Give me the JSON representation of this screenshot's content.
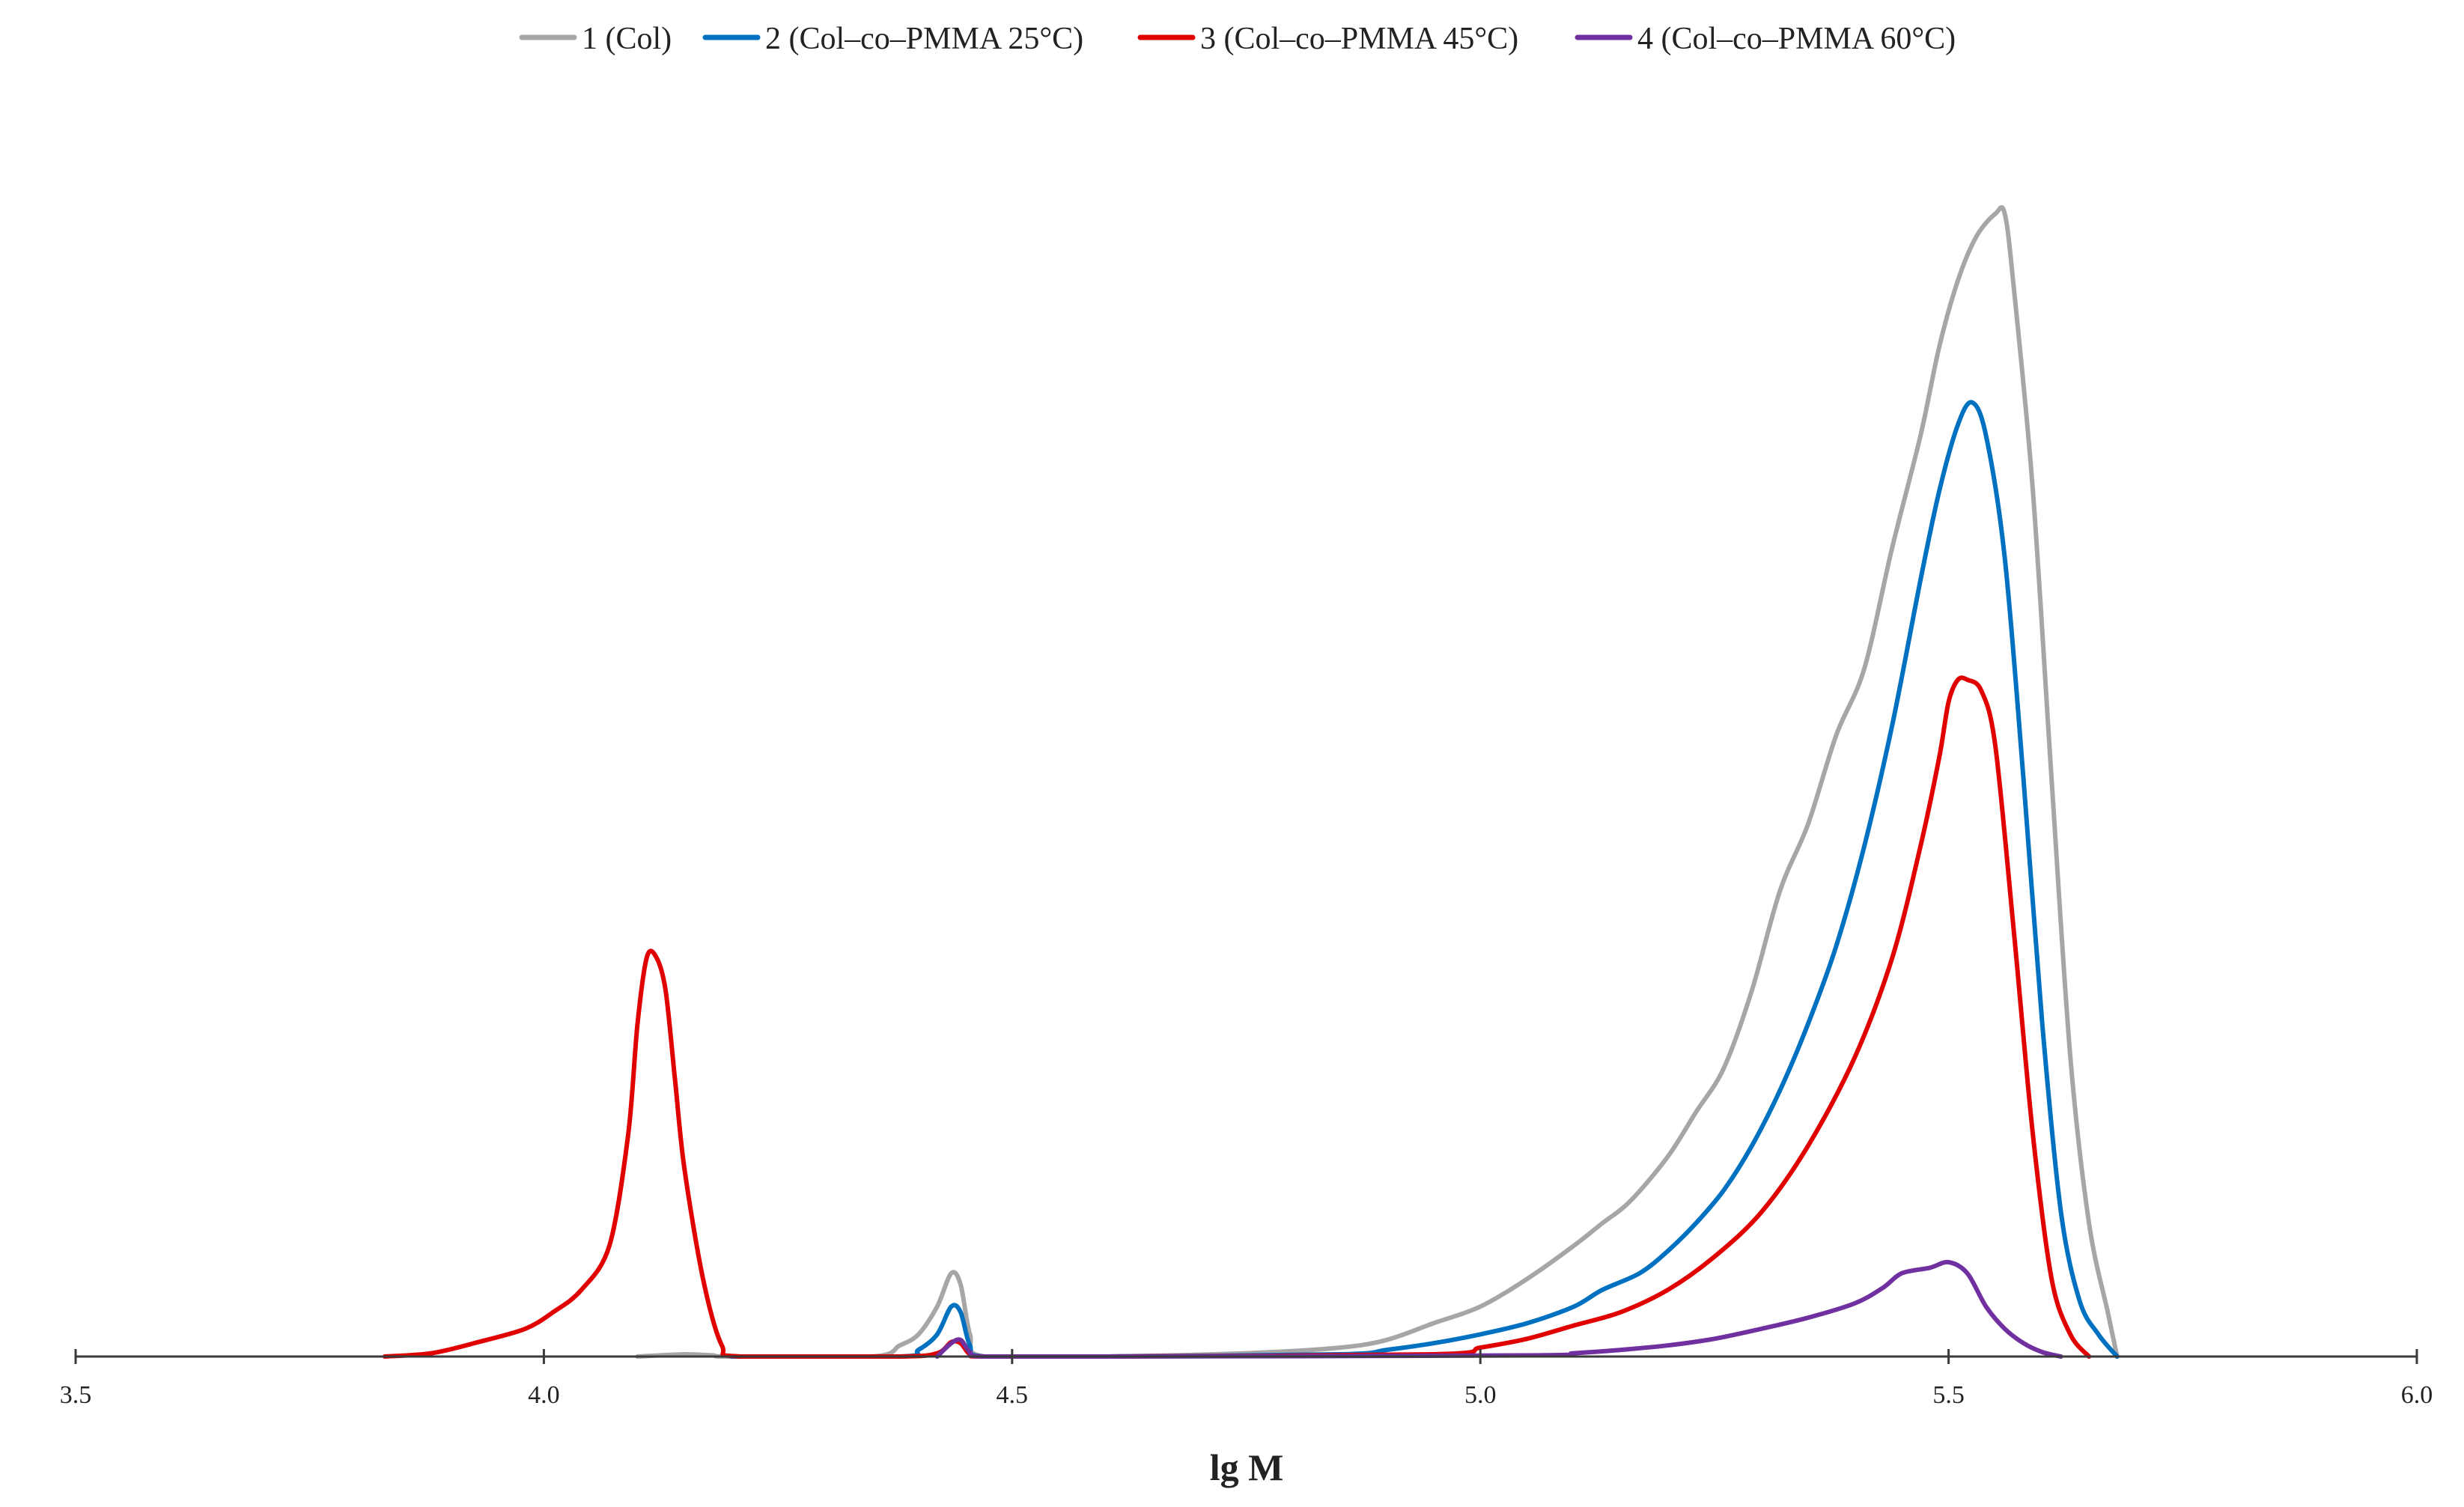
{
  "chart_data": {
    "type": "line",
    "title": "",
    "xlabel": "lg M",
    "ylabel": "",
    "xlim": [
      3.5,
      6.0
    ],
    "ylim": [
      0,
      1.0
    ],
    "x_ticks": [
      "3.5",
      "4.0",
      "4.5",
      "5.0",
      "5.5",
      "6.0"
    ],
    "grid": false,
    "legend_position": "top",
    "series": [
      {
        "name": "1 (Col)",
        "color": "#a6a6a6",
        "x": [
          4.1,
          4.15,
          4.18,
          4.2,
          4.35,
          4.38,
          4.4,
          4.42,
          4.435,
          4.445,
          4.455,
          4.47,
          4.6,
          4.75,
          4.85,
          4.9,
          4.95,
          5.0,
          5.05,
          5.1,
          5.13,
          5.16,
          5.2,
          5.23,
          5.26,
          5.29,
          5.32,
          5.35,
          5.38,
          5.41,
          5.44,
          5.47,
          5.49,
          5.51,
          5.53,
          5.55,
          5.56,
          5.57,
          5.59,
          5.61,
          5.63,
          5.65,
          5.67,
          5.68
        ],
        "y": [
          0,
          0.002,
          0.001,
          0,
          0,
          0.01,
          0.02,
          0.045,
          0.075,
          0.065,
          0.02,
          0,
          0,
          0.003,
          0.008,
          0.015,
          0.03,
          0.045,
          0.07,
          0.1,
          0.12,
          0.14,
          0.18,
          0.22,
          0.26,
          0.33,
          0.42,
          0.48,
          0.56,
          0.62,
          0.73,
          0.83,
          0.91,
          0.97,
          1.01,
          1.03,
          1.03,
          0.96,
          0.78,
          0.52,
          0.27,
          0.12,
          0.04,
          0
        ]
      },
      {
        "name": "2 (Col–co–PMMA 25°C)",
        "color": "#0070c0",
        "x": [
          4.2,
          4.38,
          4.4,
          4.42,
          4.435,
          4.445,
          4.455,
          4.47,
          4.6,
          4.85,
          4.9,
          4.95,
          5.0,
          5.05,
          5.1,
          5.13,
          5.17,
          5.2,
          5.23,
          5.26,
          5.29,
          5.32,
          5.35,
          5.38,
          5.41,
          5.44,
          5.47,
          5.49,
          5.51,
          5.525,
          5.54,
          5.56,
          5.58,
          5.6,
          5.62,
          5.64,
          5.66,
          5.68
        ],
        "y": [
          0,
          0,
          0.006,
          0.02,
          0.045,
          0.04,
          0.01,
          0,
          0,
          0.002,
          0.006,
          0.012,
          0.02,
          0.03,
          0.045,
          0.06,
          0.075,
          0.095,
          0.12,
          0.15,
          0.19,
          0.24,
          0.3,
          0.37,
          0.46,
          0.57,
          0.7,
          0.78,
          0.84,
          0.86,
          0.83,
          0.72,
          0.52,
          0.3,
          0.13,
          0.05,
          0.02,
          0
        ]
      },
      {
        "name": "3 (Col–co–PMMA 45°C)",
        "color": "#e00000",
        "x": [
          3.83,
          3.88,
          3.93,
          3.98,
          4.01,
          4.04,
          4.07,
          4.09,
          4.1,
          4.11,
          4.12,
          4.13,
          4.14,
          4.15,
          4.17,
          4.19,
          4.21,
          4.38,
          4.42,
          4.435,
          4.445,
          4.455,
          4.47,
          4.6,
          4.95,
          5.0,
          5.05,
          5.1,
          5.15,
          5.2,
          5.25,
          5.3,
          5.35,
          5.4,
          5.44,
          5.47,
          5.49,
          5.5,
          5.51,
          5.52,
          5.535,
          5.55,
          5.57,
          5.59,
          5.61,
          5.63,
          5.65
        ],
        "y": [
          0,
          0.003,
          0.013,
          0.025,
          0.04,
          0.06,
          0.1,
          0.2,
          0.3,
          0.36,
          0.36,
          0.33,
          0.25,
          0.17,
          0.07,
          0.01,
          0,
          0,
          0.003,
          0.013,
          0.012,
          0.002,
          0,
          0,
          0.002,
          0.008,
          0.016,
          0.028,
          0.04,
          0.06,
          0.09,
          0.13,
          0.19,
          0.27,
          0.36,
          0.46,
          0.54,
          0.59,
          0.61,
          0.61,
          0.6,
          0.55,
          0.38,
          0.2,
          0.07,
          0.02,
          0
        ]
      },
      {
        "name": "4 (Col–co–PMMA 60°C)",
        "color": "#7030a0",
        "x": [
          4.42,
          4.435,
          4.445,
          4.455,
          4.47,
          4.6,
          5.05,
          5.1,
          5.15,
          5.2,
          5.25,
          5.3,
          5.35,
          5.4,
          5.43,
          5.45,
          5.48,
          5.5,
          5.52,
          5.54,
          5.56,
          5.58,
          5.6,
          5.62
        ],
        "y": [
          0,
          0.012,
          0.015,
          0.004,
          0,
          0,
          0.001,
          0.003,
          0.006,
          0.01,
          0.016,
          0.025,
          0.035,
          0.048,
          0.062,
          0.075,
          0.08,
          0.085,
          0.075,
          0.045,
          0.025,
          0.012,
          0.004,
          0
        ]
      }
    ]
  }
}
